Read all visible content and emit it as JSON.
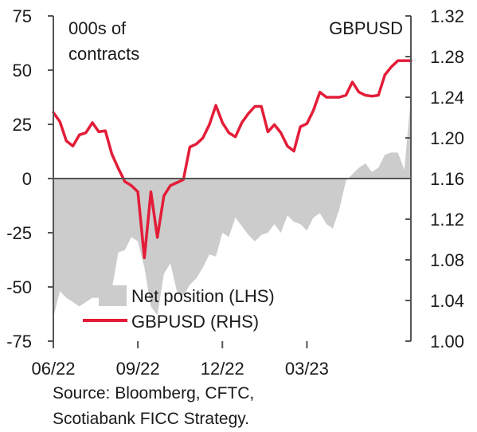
{
  "chart_data": {
    "type": "area",
    "left_unit_label": [
      "000s of",
      "contracts"
    ],
    "right_unit_label": "GBPUSD",
    "left_axis": {
      "min": -75,
      "max": 75,
      "ticks": [
        "75",
        "50",
        "25",
        "0",
        "-25",
        "-50",
        "-75"
      ]
    },
    "right_axis": {
      "min": 1.0,
      "max": 1.32,
      "ticks": [
        "1.32",
        "1.28",
        "1.24",
        "1.20",
        "1.16",
        "1.12",
        "1.08",
        "1.04",
        "1.00"
      ]
    },
    "x_ticks": [
      {
        "label": "06/22",
        "index": 0
      },
      {
        "label": "09/22",
        "index": 13
      },
      {
        "label": "12/22",
        "index": 26
      },
      {
        "label": "03/23",
        "index": 39
      }
    ],
    "n_points": 56,
    "series": [
      {
        "name": "Net position (LHS)",
        "axis": "left",
        "color": "#cccccc",
        "values": [
          -64,
          -52,
          -55,
          -57,
          -59,
          -57,
          -55,
          -55,
          -51,
          -51,
          -34,
          -33,
          -27,
          -29,
          -41,
          -59,
          -63,
          -44,
          -39,
          -52,
          -54,
          -49,
          -46,
          -41,
          -35,
          -36,
          -25,
          -27,
          -18,
          -22,
          -26,
          -29,
          -26,
          -25,
          -21,
          -25,
          -17,
          -20,
          -21,
          -24,
          -18,
          -16,
          -21,
          -23,
          -14,
          -1,
          2,
          5,
          7,
          3,
          5,
          11,
          12,
          12,
          4,
          38
        ]
      },
      {
        "name": "GBPUSD (RHS)",
        "axis": "right",
        "color": "#e31d38",
        "values": [
          1.225,
          1.216,
          1.197,
          1.192,
          1.203,
          1.205,
          1.215,
          1.206,
          1.207,
          1.184,
          1.17,
          1.157,
          1.153,
          1.147,
          1.082,
          1.147,
          1.102,
          1.143,
          1.153,
          1.156,
          1.159,
          1.191,
          1.194,
          1.2,
          1.213,
          1.232,
          1.215,
          1.205,
          1.201,
          1.215,
          1.224,
          1.231,
          1.231,
          1.206,
          1.213,
          1.205,
          1.192,
          1.187,
          1.211,
          1.214,
          1.227,
          1.245,
          1.24,
          1.24,
          1.24,
          1.242,
          1.255,
          1.245,
          1.242,
          1.241,
          1.242,
          1.262,
          1.27,
          1.276,
          1.276,
          1.276
        ]
      }
    ],
    "legend_position": "bottom-center",
    "source": [
      "Source: Bloomberg, CFTC,",
      "Scotiabank FICC Strategy."
    ]
  }
}
